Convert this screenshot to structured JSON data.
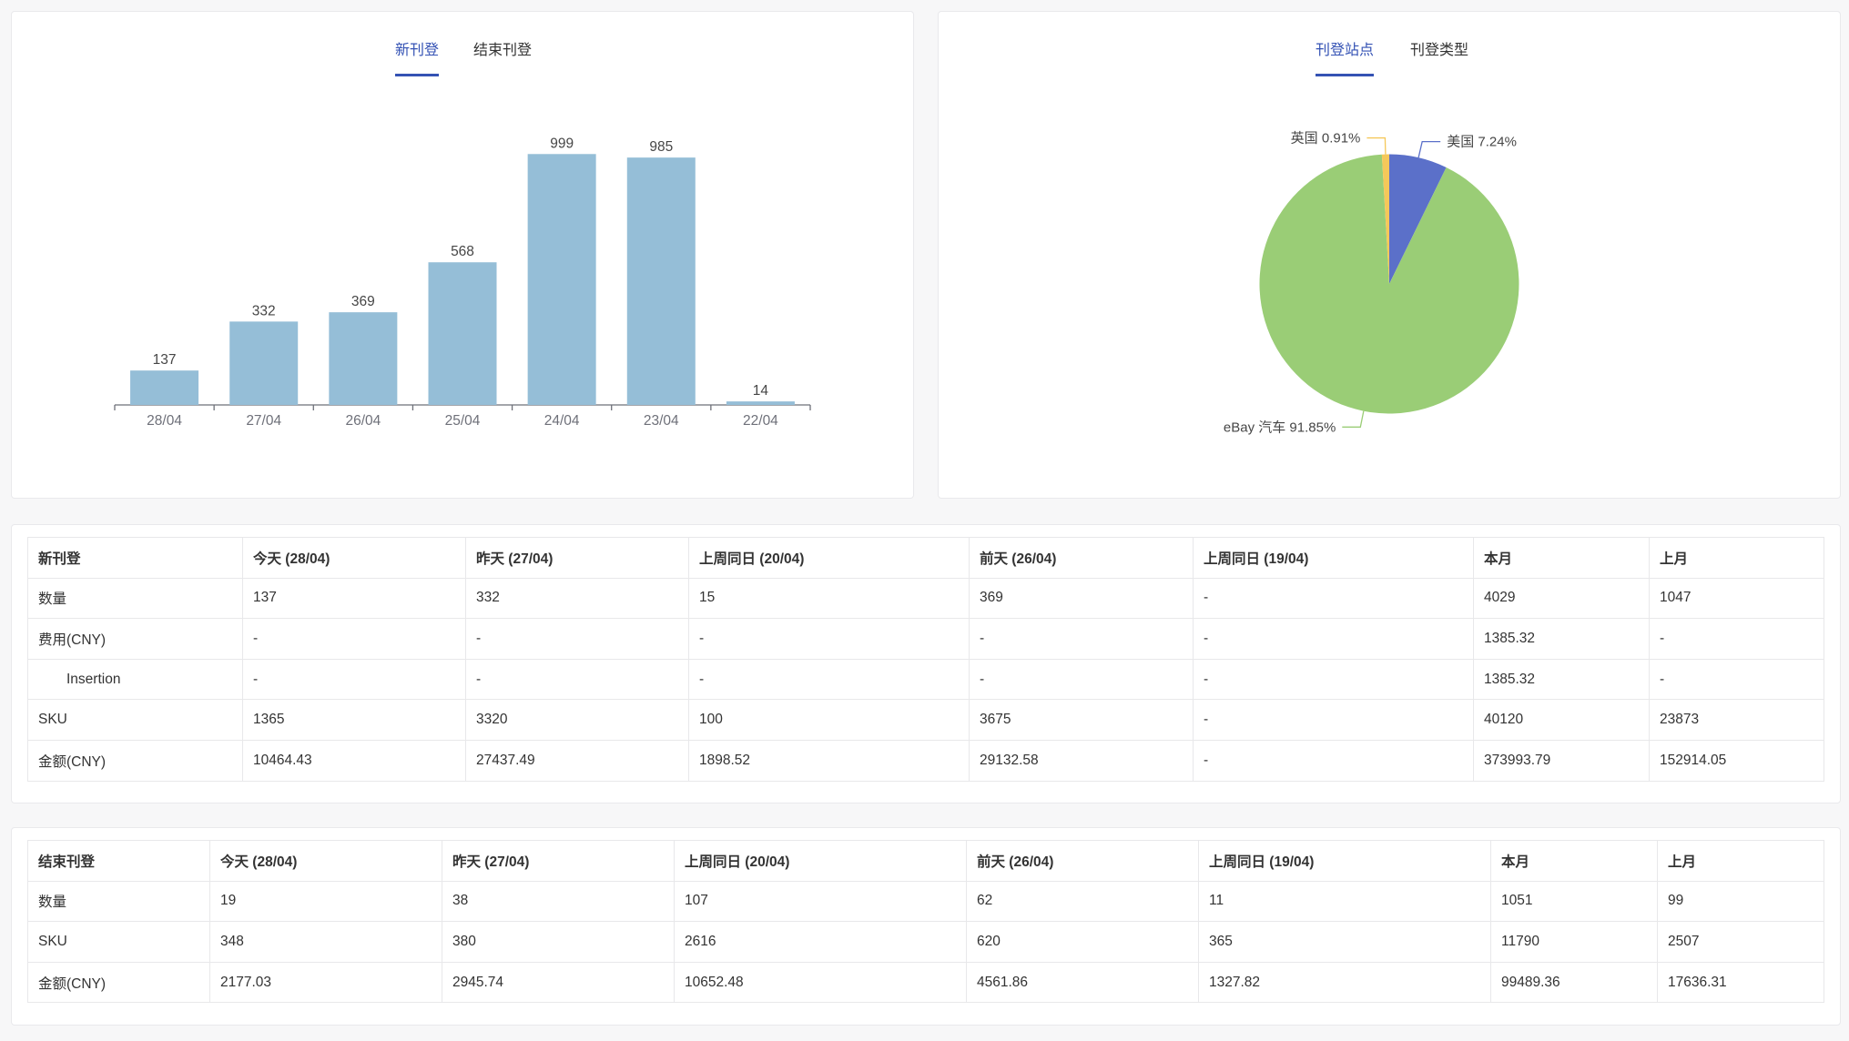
{
  "new_listing_panel": {
    "tabs": [
      {
        "label": "新刊登",
        "active": true
      },
      {
        "label": "结束刊登",
        "active": false
      }
    ]
  },
  "site_panel": {
    "tabs": [
      {
        "label": "刊登站点",
        "active": true
      },
      {
        "label": "刊登类型",
        "active": false
      }
    ]
  },
  "colors": {
    "accent": "#3452b4",
    "axis": "#6e7079",
    "label": "#464646"
  },
  "chart_data": [
    {
      "type": "bar",
      "categories": [
        "28/04",
        "27/04",
        "26/04",
        "25/04",
        "24/04",
        "23/04",
        "22/04"
      ],
      "values": [
        137,
        332,
        369,
        568,
        999,
        985,
        14
      ],
      "ylim": [
        0,
        1000
      ],
      "grid": false,
      "color": "#95bed7"
    },
    {
      "type": "pie",
      "slices": [
        {
          "name": "美国",
          "percent": "7.24%",
          "value": 7.24,
          "color": "#5b70c9"
        },
        {
          "name": "eBay 汽车",
          "percent": "91.85%",
          "value": 91.85,
          "color": "#9acd76"
        },
        {
          "name": "英国",
          "percent": "0.91%",
          "value": 0.91,
          "color": "#f5c85a"
        }
      ]
    }
  ],
  "new_listing_table": {
    "headers": [
      "新刊登",
      "今天 (28/04)",
      "昨天 (27/04)",
      "上周同日 (20/04)",
      "前天 (26/04)",
      "上周同日 (19/04)",
      "本月",
      "上月"
    ],
    "rows": [
      {
        "label": "数量",
        "cells": [
          "137",
          "332",
          "15",
          "369",
          "-",
          "4029",
          "1047"
        ]
      },
      {
        "label": "费用(CNY)",
        "cells": [
          "-",
          "-",
          "-",
          "-",
          "-",
          "1385.32",
          "-"
        ]
      },
      {
        "label": "Insertion",
        "cells": [
          "-",
          "-",
          "-",
          "-",
          "-",
          "1385.32",
          "-"
        ]
      },
      {
        "label": "SKU",
        "cells": [
          "1365",
          "3320",
          "100",
          "3675",
          "-",
          "40120",
          "23873"
        ]
      },
      {
        "label": "金额(CNY)",
        "cells": [
          "10464.43",
          "27437.49",
          "1898.52",
          "29132.58",
          "-",
          "373993.79",
          "152914.05"
        ]
      }
    ]
  },
  "ended_listing_table": {
    "headers": [
      "结束刊登",
      "今天 (28/04)",
      "昨天 (27/04)",
      "上周同日 (20/04)",
      "前天 (26/04)",
      "上周同日 (19/04)",
      "本月",
      "上月"
    ],
    "rows": [
      {
        "label": "数量",
        "cells": [
          "19",
          "38",
          "107",
          "62",
          "11",
          "1051",
          "99"
        ]
      },
      {
        "label": "SKU",
        "cells": [
          "348",
          "380",
          "2616",
          "620",
          "365",
          "11790",
          "2507"
        ]
      },
      {
        "label": "金额(CNY)",
        "cells": [
          "2177.03",
          "2945.74",
          "10652.48",
          "4561.86",
          "1327.82",
          "99489.36",
          "17636.31"
        ]
      }
    ]
  }
}
